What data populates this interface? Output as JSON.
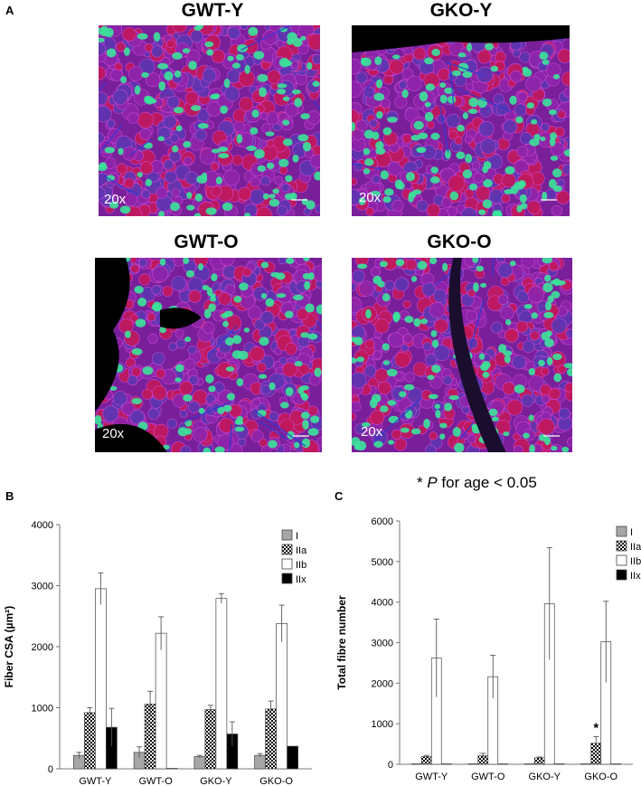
{
  "panels": {
    "a": "A",
    "b": "B",
    "c": "C"
  },
  "images": [
    {
      "title": "GWT-Y",
      "magnification": "20x"
    },
    {
      "title": "GKO-Y",
      "magnification": "20x"
    },
    {
      "title": "GWT-O",
      "magnification": "20x"
    },
    {
      "title": "GKO-O",
      "magnification": "20x"
    }
  ],
  "significance": {
    "prefix": "* ",
    "p": "P",
    "suffix": " for age < 0.05"
  },
  "colors": {
    "I": "#a6a6a6",
    "IIb": "#ffffff",
    "IIx": "#000000",
    "tissue": "#7a1f9a",
    "fibre_green": "#3be39a"
  },
  "chart_data": [
    {
      "type": "bar",
      "title": "",
      "xlabel": "",
      "ylabel": "Fiber CSA (µm²)",
      "ylim": [
        0,
        4000
      ],
      "yticks": [
        "0",
        "1000",
        "2000",
        "3000",
        "4000"
      ],
      "categories": [
        "GWT-Y",
        "GWT-O",
        "GKO-Y",
        "GKO-O"
      ],
      "legend_position": "top-right",
      "series": [
        {
          "name": "I",
          "fill": "gray",
          "values": [
            220,
            270,
            200,
            220
          ],
          "errors": [
            50,
            90,
            20,
            30
          ]
        },
        {
          "name": "IIa",
          "fill": "checker",
          "values": [
            920,
            1060,
            970,
            980
          ],
          "errors": [
            80,
            210,
            70,
            130
          ]
        },
        {
          "name": "IIb",
          "fill": "white",
          "values": [
            2950,
            2220,
            2790,
            2380
          ],
          "errors": [
            260,
            270,
            80,
            300
          ]
        },
        {
          "name": "IIx",
          "fill": "black",
          "values": [
            680,
            0,
            570,
            370
          ],
          "errors": [
            310,
            0,
            200,
            0
          ]
        }
      ]
    },
    {
      "type": "bar",
      "title": "",
      "xlabel": "",
      "ylabel": "Total fibre number",
      "ylim": [
        0,
        6000
      ],
      "yticks": [
        "0",
        "1000",
        "2000",
        "3000",
        "4000",
        "5000",
        "6000"
      ],
      "categories": [
        "GWT-Y",
        "GWT-O",
        "GKO-Y",
        "GKO-O"
      ],
      "legend_position": "top-right",
      "annotations": [
        {
          "category": "GKO-O",
          "series": "IIa",
          "text": "*"
        }
      ],
      "series": [
        {
          "name": "I",
          "fill": "gray",
          "values": [
            0,
            0,
            0,
            0
          ],
          "errors": [
            0,
            0,
            0,
            0
          ]
        },
        {
          "name": "IIa",
          "fill": "checker",
          "values": [
            190,
            210,
            160,
            520
          ],
          "errors": [
            30,
            60,
            20,
            160
          ]
        },
        {
          "name": "IIb",
          "fill": "white",
          "values": [
            2620,
            2160,
            3960,
            3020
          ],
          "errors": [
            960,
            530,
            1380,
            1000
          ]
        },
        {
          "name": "IIx",
          "fill": "black",
          "values": [
            0,
            0,
            0,
            0
          ],
          "errors": [
            0,
            0,
            0,
            0
          ]
        }
      ]
    }
  ]
}
